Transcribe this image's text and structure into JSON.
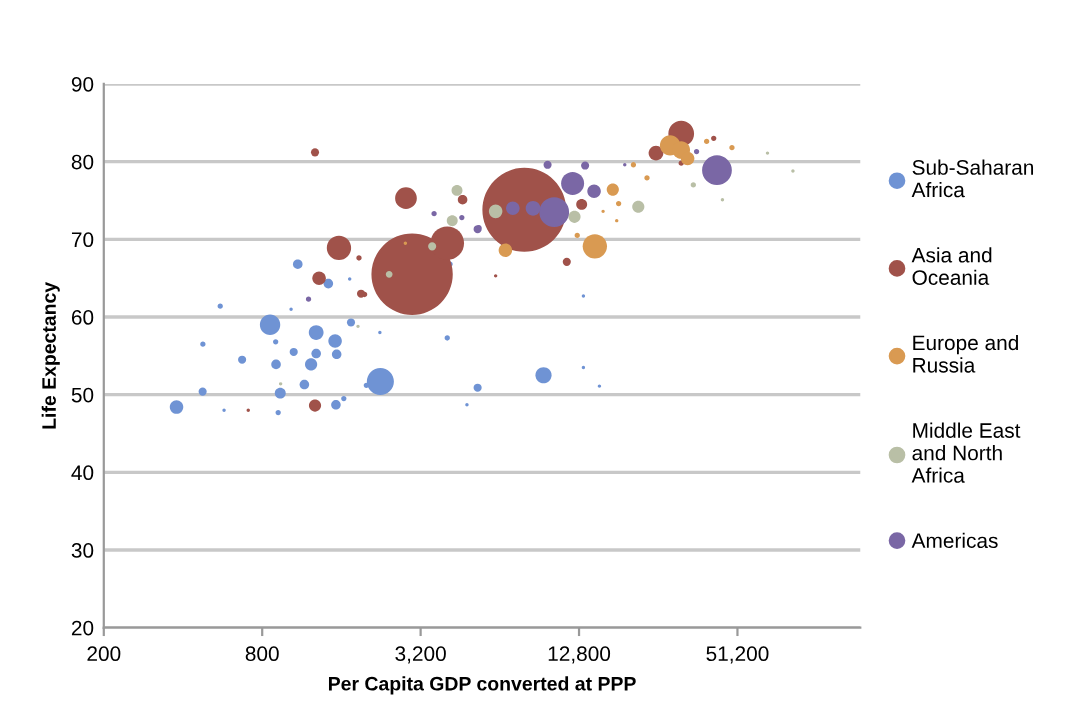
{
  "chart_data": {
    "type": "bubble",
    "xlabel": "Per Capita GDP converted at PPP",
    "ylabel": "Life Expectancy",
    "log": "x",
    "xlim": [
      200,
      150000
    ],
    "xticks": [
      200,
      800,
      {
        "value": 3200,
        "label": "3,200"
      },
      {
        "value": 12800,
        "label": "12,800"
      },
      {
        "value": 51200,
        "label": "51,200"
      }
    ],
    "ylim": [
      20,
      90
    ],
    "yticks": [
      20,
      30,
      40,
      50,
      60,
      70,
      80,
      90
    ],
    "grid": "y",
    "legend": "right",
    "marker": "circle",
    "series": [
      {
        "name": "Sub-Saharan\nAfrica",
        "color": "#6f93d4",
        "x": [
          378,
          475,
          554,
          476,
          573,
          671,
          857,
          900,
          903,
          937,
          920,
          1054,
          1092,
          1157,
          1227,
          1283,
          1283,
          1427,
          1514,
          1535,
          1525,
          1634,
          1740,
          2250,
          1990,
          2240,
          4040,
          4800,
          5270,
          4140,
          1720,
          1030,
          9380,
          13300,
          15300,
          13300
        ],
        "values": [
          48.4,
          50.4,
          61.4,
          56.5,
          48,
          54.5,
          59,
          56.8,
          53.9,
          50.2,
          47.7,
          55.5,
          66.8,
          51.3,
          53.9,
          55.3,
          58,
          64.3,
          56.9,
          55.2,
          48.7,
          49.5,
          59.3,
          51.7,
          51.2,
          58,
          57.3,
          48.7,
          50.9,
          66.8,
          64.9,
          61,
          52.5,
          53.5,
          51.1,
          62.7
        ],
        "sizes": [
          0.026,
          0.0094,
          0.004,
          0.004,
          0.0016,
          0.0094,
          0.059,
          0.004,
          0.013,
          0.017,
          0.004,
          0.0094,
          0.013,
          0.013,
          0.021,
          0.013,
          0.031,
          0.013,
          0.026,
          0.013,
          0.013,
          0.004,
          0.0094,
          0.104,
          0.004,
          0.0016,
          0.004,
          0.0016,
          0.0094,
          0.004,
          0.0016,
          0.0016,
          0.037,
          0.0016,
          0.0016,
          0.0016
        ]
      },
      {
        "name": "Asia and\nOceania",
        "color": "#a0524a",
        "x": [
          1270,
          708,
          1270,
          1566,
          1316,
          1866,
          1900,
          1960,
          2970,
          2815,
          4040,
          4620,
          7930,
          31300,
          25100,
          13100,
          11500,
          6170,
          41600,
          31300
        ],
        "values": [
          81.2,
          48,
          48.6,
          68.9,
          65,
          67.6,
          63,
          62.9,
          65.5,
          75.3,
          69.5,
          75.1,
          73.8,
          83.6,
          81.1,
          74.5,
          67.1,
          65.3,
          83,
          79.8
        ],
        "sizes": [
          0.0094,
          0.0016,
          0.021,
          0.084,
          0.026,
          0.004,
          0.0094,
          0.004,
          0.94,
          0.067,
          0.16,
          0.013,
          1,
          0.094,
          0.031,
          0.017,
          0.0094,
          0.0016,
          0.004,
          0.004
        ]
      },
      {
        "name": "Europe and\nRussia",
        "color": "#d99a52",
        "x": [
          6720,
          14700,
          17200,
          18100,
          20600,
          23200,
          28400,
          31300,
          33100,
          39100,
          48800,
          12600,
          15800,
          17800,
          2800
        ],
        "values": [
          68.6,
          69.1,
          76.4,
          74.6,
          79.6,
          77.9,
          82.1,
          81.5,
          80.4,
          82.6,
          81.8,
          70.5,
          73.6,
          72.4,
          69.5
        ],
        "sizes": [
          0.026,
          0.084,
          0.021,
          0.004,
          0.004,
          0.004,
          0.059,
          0.044,
          0.026,
          0.004,
          0.004,
          0.004,
          0.0016,
          0.0016,
          0.0016
        ]
      },
      {
        "name": "Middle East\nand North\nAfrica",
        "color": "#b9bfa6",
        "x": [
          21500,
          12300,
          4400,
          4220,
          34800,
          44900,
          940,
          1850,
          2430,
          3540,
          6170,
          66600,
          83200
        ],
        "values": [
          74.2,
          72.9,
          76.3,
          72.4,
          77,
          75.1,
          51.4,
          58.8,
          65.5,
          69.1,
          73.6,
          81.1,
          78.8
        ],
        "sizes": [
          0.021,
          0.021,
          0.017,
          0.017,
          0.004,
          0.0016,
          0.0016,
          0.0016,
          0.0065,
          0.0094,
          0.026,
          0.0016,
          0.0016
        ]
      },
      {
        "name": "Americas",
        "color": "#7a67a5",
        "x": [
          42800,
          12100,
          10300,
          8560,
          7170,
          14600,
          13500,
          9720,
          5330,
          35800,
          5270,
          4590,
          3600,
          19100,
          1200
        ],
        "values": [
          78.9,
          77.2,
          73.5,
          74,
          74,
          76.2,
          79.5,
          79.6,
          71.5,
          81.3,
          71.3,
          72.8,
          73.3,
          79.6,
          62.3
        ],
        "sizes": [
          0.126,
          0.075,
          0.126,
          0.031,
          0.026,
          0.026,
          0.0094,
          0.0094,
          0.004,
          0.004,
          0.0094,
          0.004,
          0.004,
          0.0016,
          0.004
        ]
      }
    ]
  }
}
